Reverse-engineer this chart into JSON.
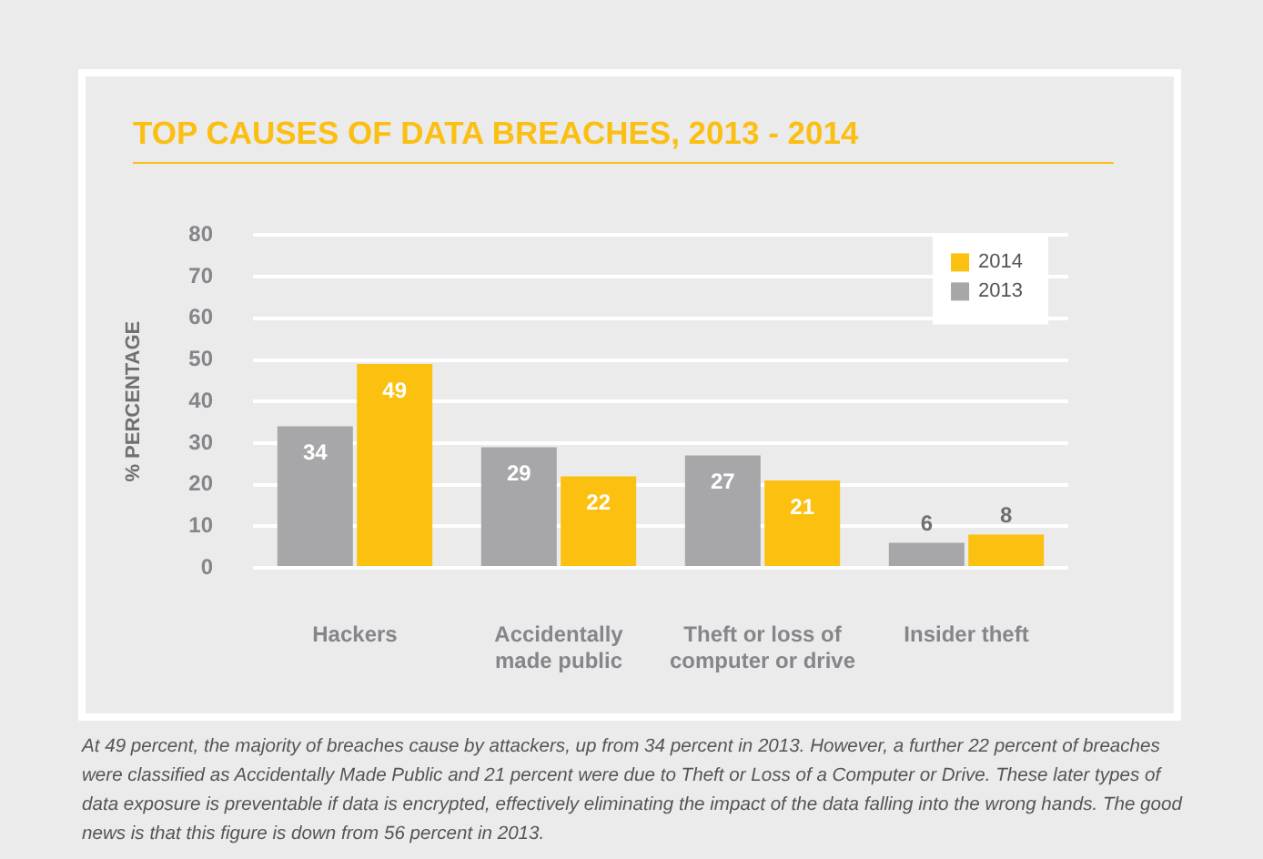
{
  "chart_data": {
    "type": "bar",
    "title": "TOP CAUSES OF DATA BREACHES, 2013 - 2014",
    "ylabel": "% PERCENTAGE",
    "categories": [
      "Hackers",
      "Accidentally made public",
      "Theft or loss of computer or drive",
      "Insider theft"
    ],
    "series": [
      {
        "name": "2013",
        "color": "#a7a7aa",
        "values": [
          34,
          29,
          27,
          6
        ]
      },
      {
        "name": "2014",
        "color": "#fcc010",
        "values": [
          49,
          22,
          21,
          8
        ]
      }
    ],
    "ylim": [
      0,
      80
    ],
    "yticks": [
      0,
      10,
      20,
      30,
      40,
      50,
      60,
      70,
      80
    ],
    "grid": "y",
    "legend": "top right",
    "data_labels": true,
    "annotations": [
      "At 49 percent, the majority of breaches cause by attackers, up from 34 percent in 2013. However, a further 22 percent of breaches were classified as Accidentally Made Public and 21 percent were due to Theft or Loss of a Computer or Drive. These later types of data exposure is preventable if data is encrypted, effectively eliminating the impact of the data falling into the wrong hands. The good news is that this figure is down from 56 percent in 2013."
    ]
  }
}
